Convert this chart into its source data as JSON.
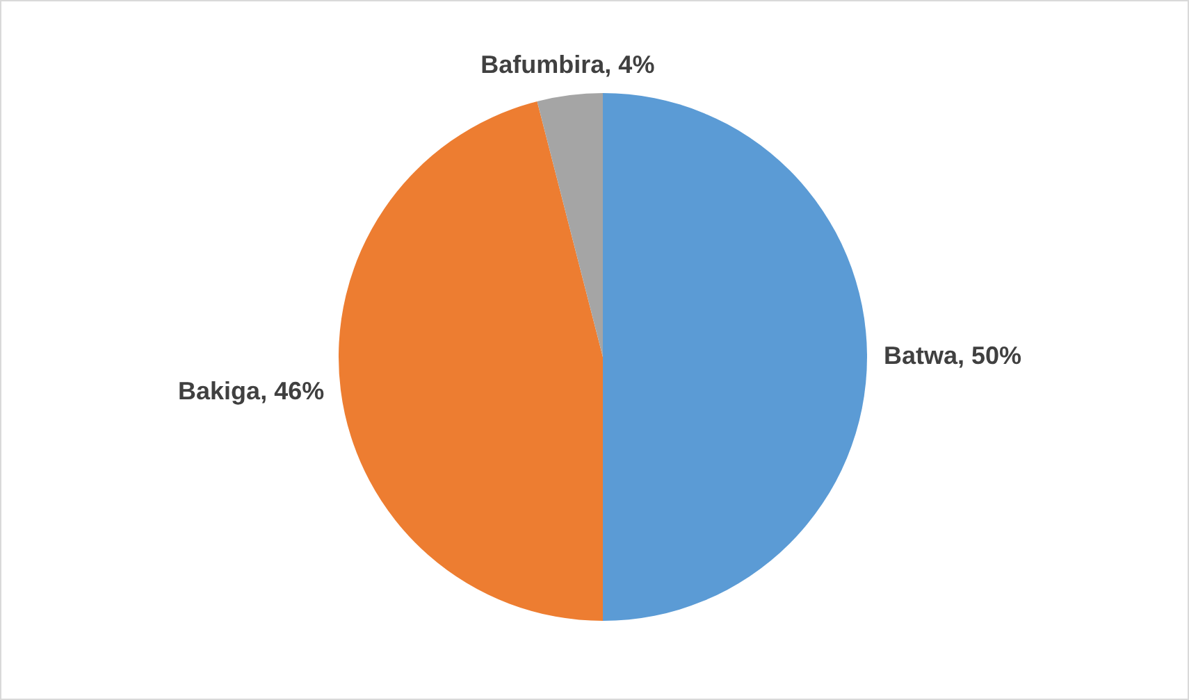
{
  "chart_data": {
    "type": "pie",
    "categories": [
      "Batwa",
      "Bakiga",
      "Bafumbira"
    ],
    "values": [
      50,
      46,
      4
    ],
    "colors": [
      "#5b9bd5",
      "#ed7d31",
      "#a5a5a5"
    ],
    "value_labels": [
      ", 50%",
      ", 46%",
      ", 4%"
    ],
    "legend": false
  }
}
